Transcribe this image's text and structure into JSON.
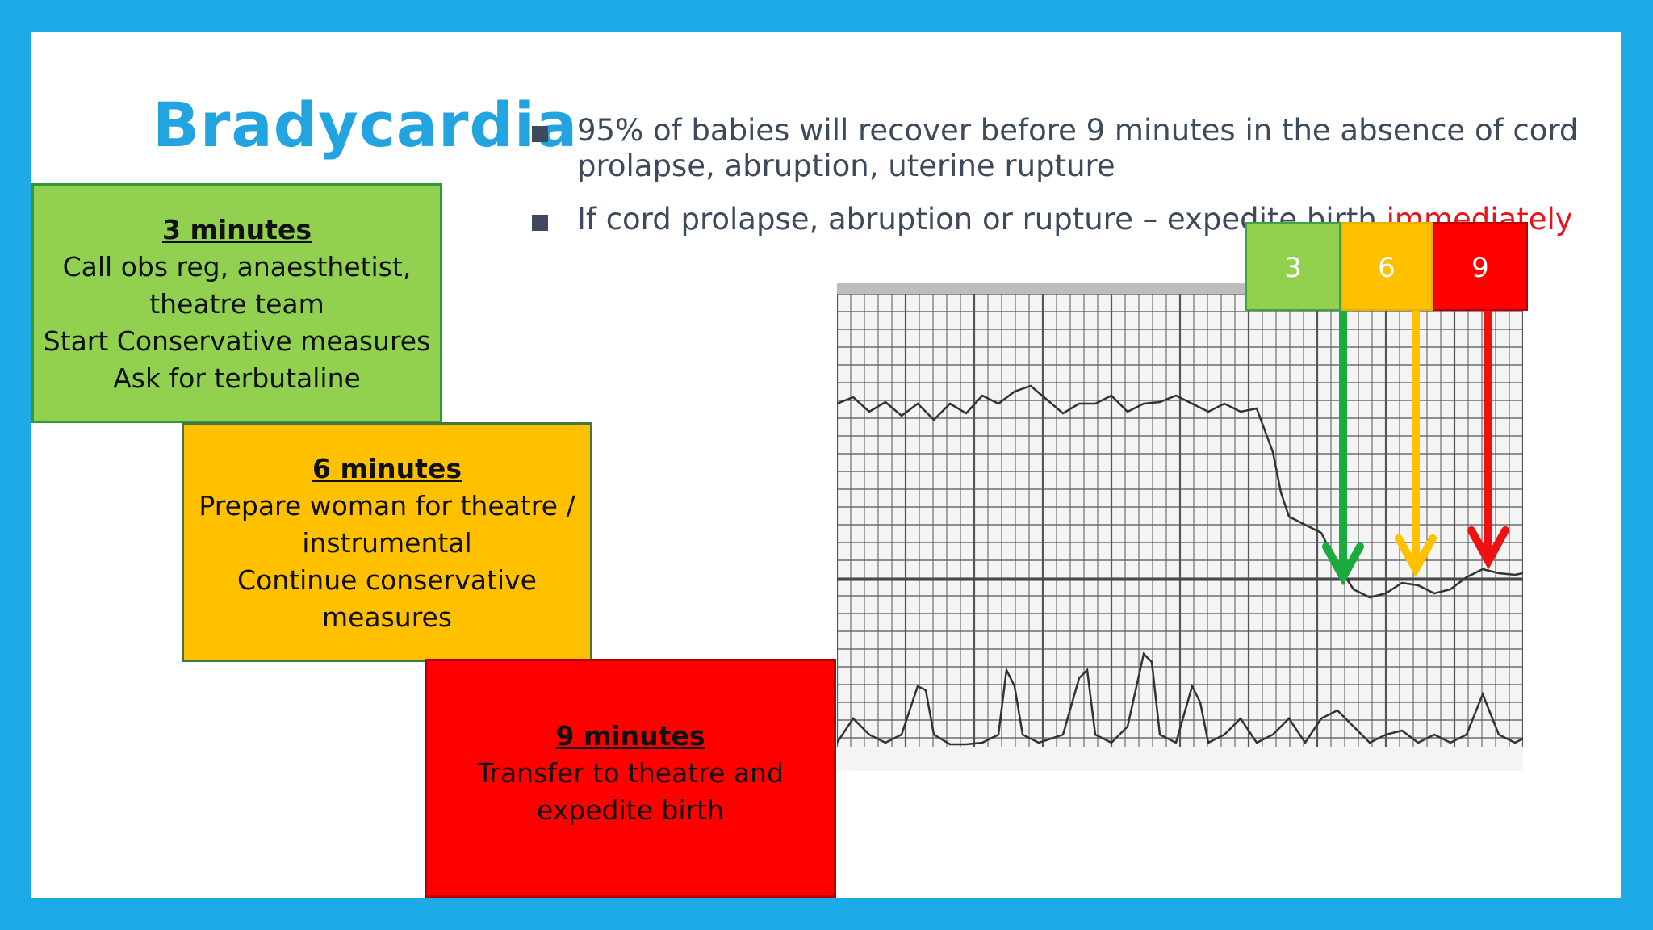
{
  "slide": {
    "title": "Bradycardia",
    "bullets": [
      {
        "text": "95% of babies will recover before 9 minutes in the absence of cord prolapse, abruption, uterine rupture"
      },
      {
        "text": "If cord prolapse, abruption or rupture – expedite birth ",
        "emphasis": "immediately"
      }
    ],
    "steps": [
      {
        "heading": "3 minutes",
        "lines": [
          "Call obs reg, anaesthetist,",
          "theatre team",
          "Start Conservative measures",
          "Ask for terbutaline"
        ],
        "color": "#92d050"
      },
      {
        "heading": "6 minutes",
        "lines": [
          "Prepare woman for theatre /",
          "instrumental",
          "Continue conservative",
          "measures"
        ],
        "color": "#ffc000"
      },
      {
        "heading": "9 minutes",
        "lines": [
          "Transfer to theatre and",
          "expedite birth"
        ],
        "color": "#ff0000"
      }
    ],
    "markers": [
      {
        "label": "3",
        "color": "#92d050",
        "arrow_color": "#1aab3c"
      },
      {
        "label": "6",
        "color": "#ffc000",
        "arrow_color": "#ffc000"
      },
      {
        "label": "9",
        "color": "#ff0000",
        "arrow_color": "#ee1111"
      }
    ],
    "accent_color": "#1eaae6"
  }
}
